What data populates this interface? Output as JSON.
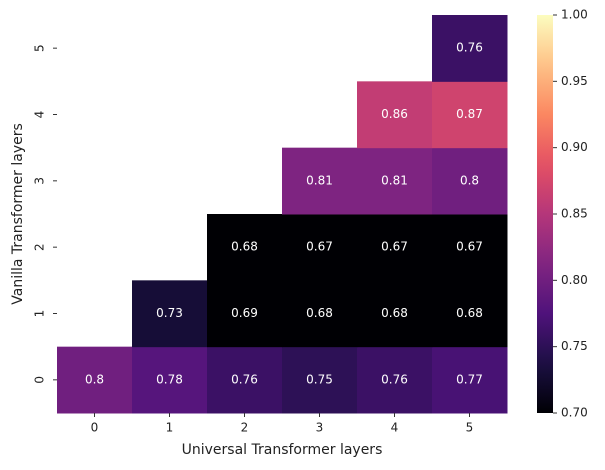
{
  "chart_data": {
    "type": "heatmap",
    "xlabel": "Universal Transformer layers",
    "ylabel": "Vanilla Transformer layers",
    "x": [
      0,
      1,
      2,
      3,
      4,
      5
    ],
    "y": [
      0,
      1,
      2,
      3,
      4,
      5
    ],
    "values": [
      [
        0.8,
        0.78,
        0.76,
        0.75,
        0.76,
        0.77
      ],
      [
        null,
        0.73,
        0.69,
        0.68,
        0.68,
        0.68
      ],
      [
        null,
        null,
        0.68,
        0.67,
        0.67,
        0.67
      ],
      [
        null,
        null,
        null,
        0.81,
        0.81,
        0.8
      ],
      [
        null,
        null,
        null,
        null,
        0.86,
        0.87
      ],
      [
        null,
        null,
        null,
        null,
        null,
        0.76
      ]
    ],
    "colormap": "magma",
    "clim": [
      0.7,
      1.0
    ],
    "cticks": [
      {
        "value": 0.7,
        "label": "0.70"
      },
      {
        "value": 0.75,
        "label": "0.75"
      },
      {
        "value": 0.8,
        "label": "0.80"
      },
      {
        "value": 0.85,
        "label": "0.85"
      },
      {
        "value": 0.9,
        "label": "0.90"
      },
      {
        "value": 0.95,
        "label": "0.95"
      },
      {
        "value": 1.0,
        "label": "1.00"
      }
    ]
  }
}
